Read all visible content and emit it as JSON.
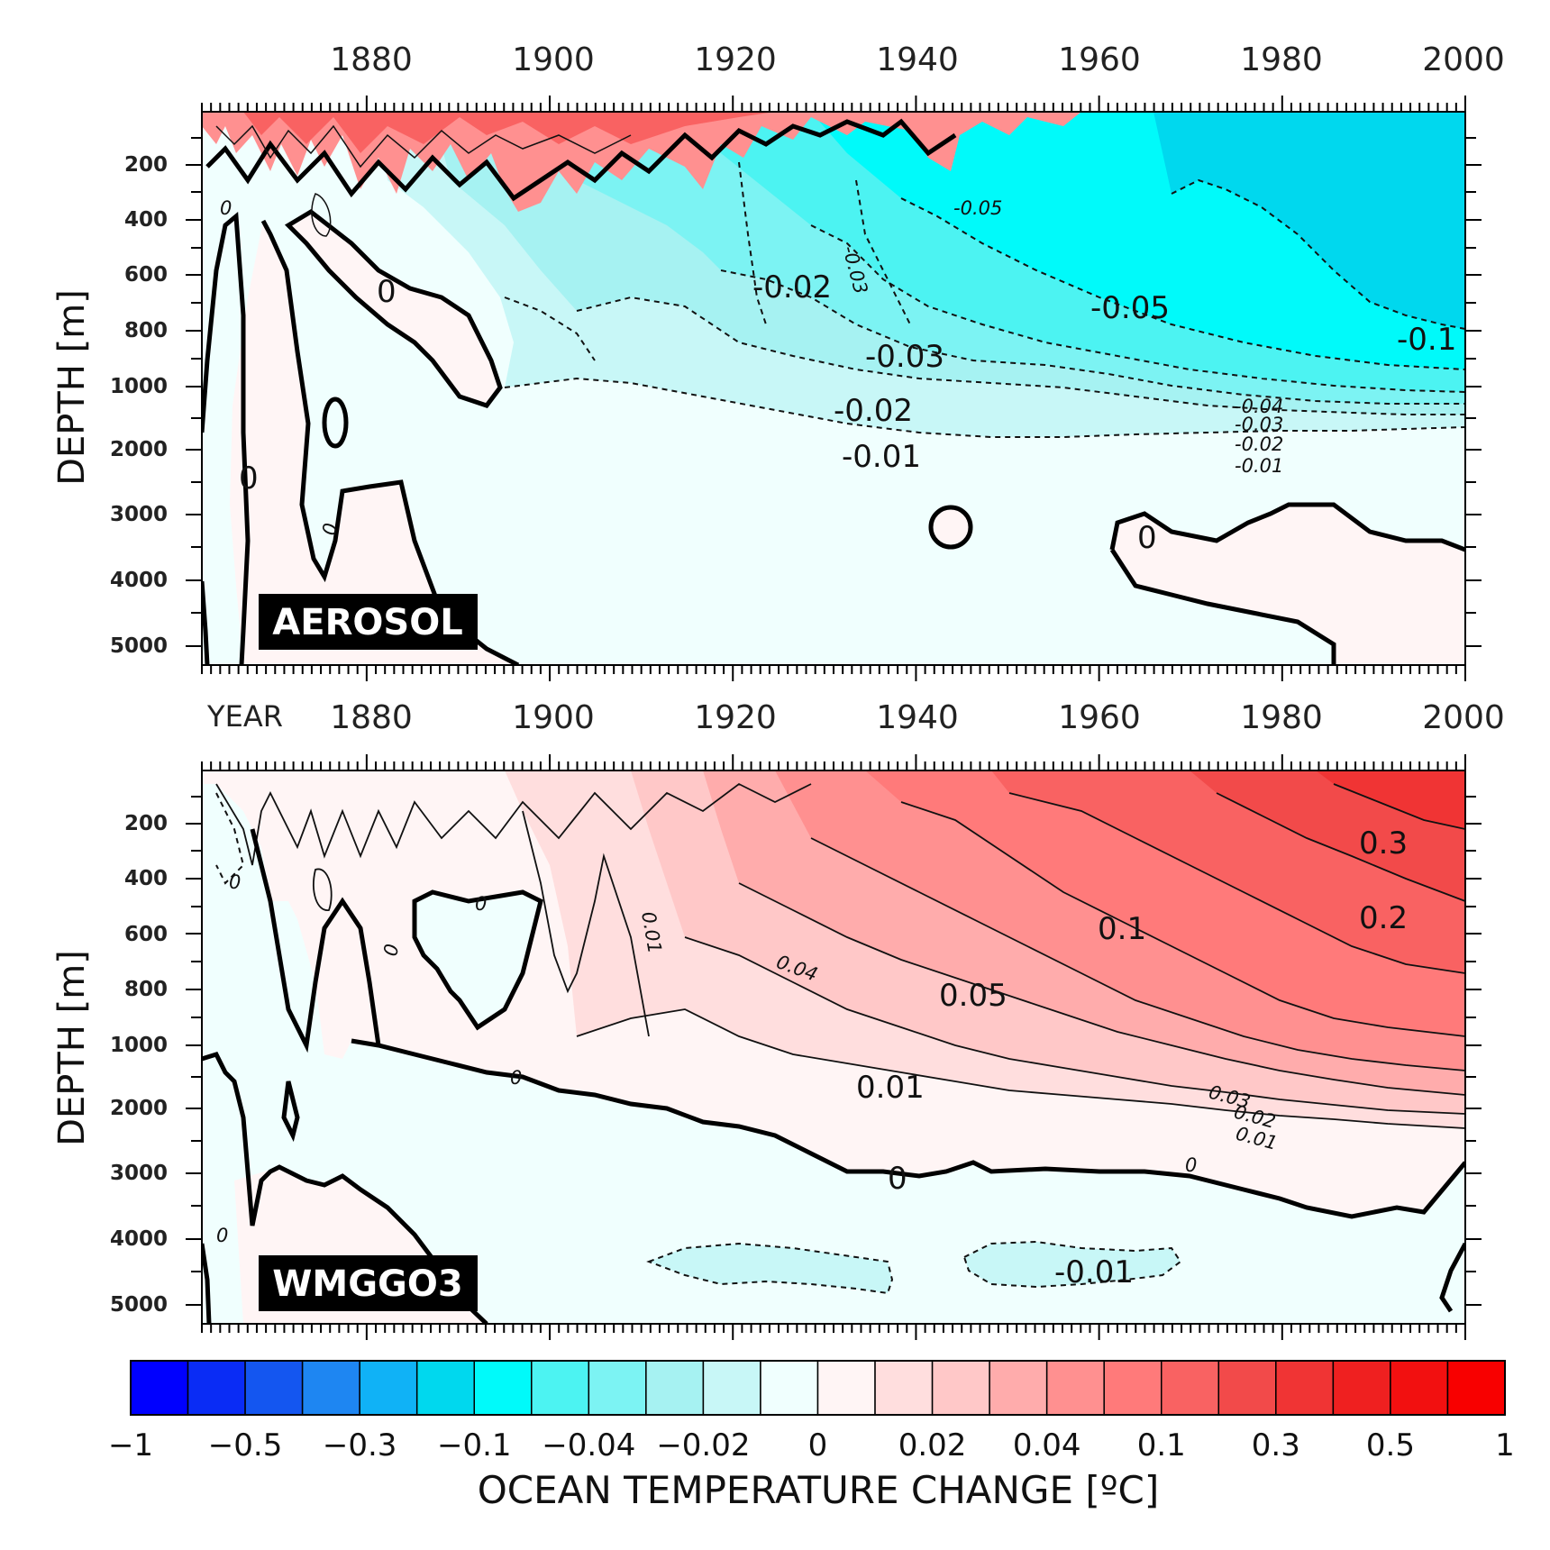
{
  "chart_data": [
    {
      "type": "heatmap",
      "panel": "AEROSOL",
      "x_tick_labels": [
        "1880",
        "1900",
        "1920",
        "1940",
        "1960",
        "1980",
        "2000"
      ],
      "y_tick_labels": [
        "200",
        "400",
        "600",
        "800",
        "1000",
        "2000",
        "3000",
        "4000",
        "5000"
      ],
      "ylabel": "DEPTH [m]",
      "contour_labels": [
        {
          "text": "-0.02",
          "year": 1926,
          "depth": 700
        },
        {
          "text": "-0.05",
          "year": 1963,
          "depth": 760
        },
        {
          "text": "-0.1",
          "year": 1996,
          "depth": 880
        },
        {
          "text": "-0.03",
          "year": 1935,
          "depth": 940
        },
        {
          "text": "-0.02",
          "year": 1933,
          "depth": 1500
        },
        {
          "text": "-0.01",
          "year": 1933,
          "depth": 2150
        },
        {
          "text": "0",
          "year": 1876,
          "depth": 680
        },
        {
          "text": "0",
          "year": 1869,
          "depth": 2400
        },
        {
          "text": "0",
          "year": 1965,
          "depth": 3350
        },
        {
          "text": "-0.05",
          "year": 1947,
          "depth": 380
        },
        {
          "text": "-0.03",
          "year": 1931,
          "depth": 560
        },
        {
          "text": "-0.04",
          "year": 1976,
          "depth": 1550
        },
        {
          "text": "-0.03",
          "year": 1976,
          "depth": 1800
        },
        {
          "text": "-0.02",
          "year": 1976,
          "depth": 2000
        },
        {
          "text": "-0.01",
          "year": 1976,
          "depth": 2250
        },
        {
          "text": "0",
          "year": 1867,
          "depth": 400
        },
        {
          "text": "0",
          "year": 1876,
          "depth": 3600
        }
      ]
    },
    {
      "type": "heatmap",
      "panel": "WMGGO3",
      "x_tick_labels": [
        "YEAR",
        "1880",
        "1900",
        "1920",
        "1940",
        "1960",
        "1980",
        "2000"
      ],
      "y_tick_labels": [
        "200",
        "400",
        "600",
        "800",
        "1000",
        "2000",
        "3000",
        "4000",
        "5000"
      ],
      "ylabel": "DEPTH [m]",
      "contour_labels": [
        {
          "text": "0.3",
          "year": 1995,
          "depth": 260
        },
        {
          "text": "0.2",
          "year": 1995,
          "depth": 560
        },
        {
          "text": "0.1",
          "year": 1962,
          "depth": 600
        },
        {
          "text": "0.05",
          "year": 1943,
          "depth": 830
        },
        {
          "text": "0.01",
          "year": 1937,
          "depth": 1700
        },
        {
          "text": "0",
          "year": 1938,
          "depth": 3100
        },
        {
          "text": "-0.01",
          "year": 1962,
          "depth": 4500
        },
        {
          "text": "0.01",
          "year": 1910,
          "depth": 500
        },
        {
          "text": "0.04",
          "year": 1925,
          "depth": 760
        },
        {
          "text": "0",
          "year": 1896,
          "depth": 470
        },
        {
          "text": "0",
          "year": 1896,
          "depth": 1700
        },
        {
          "text": "0",
          "year": 1967,
          "depth": 3050
        },
        {
          "text": "0.03",
          "year": 1976,
          "depth": 1850
        },
        {
          "text": "0.02",
          "year": 1977,
          "depth": 2100
        },
        {
          "text": "0.01",
          "year": 1977,
          "depth": 2400
        },
        {
          "text": "0",
          "year": 1867,
          "depth": 400
        },
        {
          "text": "0",
          "year": 1875,
          "depth": 700
        },
        {
          "text": "0",
          "year": 1867,
          "depth": 4000
        }
      ]
    }
  ],
  "colorbar": {
    "title": "OCEAN TEMPERATURE CHANGE [ºC]",
    "labels": [
      "−1",
      "−0.5",
      "−0.3",
      "−0.1",
      "−0.04",
      "−0.02",
      "0",
      "0.02",
      "0.04",
      "0.1",
      "0.3",
      "0.5",
      "1"
    ],
    "colors": [
      "#0000ff",
      "#0a2cf5",
      "#1456f0",
      "#1e86f2",
      "#10b2f6",
      "#00d8ee",
      "#00fafa",
      "#4cf3f2",
      "#7cf3f3",
      "#a6f2f2",
      "#c8f7f7",
      "#f0fffe",
      "#fff5f5",
      "#ffdede",
      "#ffc8c8",
      "#ffacac",
      "#ff9090",
      "#ff7a7a",
      "#f96262",
      "#f24a4a",
      "#f03434",
      "#ef2020",
      "#f21010",
      "#f80000"
    ]
  },
  "panel_tags": {
    "top": "AEROSOL",
    "bottom": "WMGGO3"
  }
}
